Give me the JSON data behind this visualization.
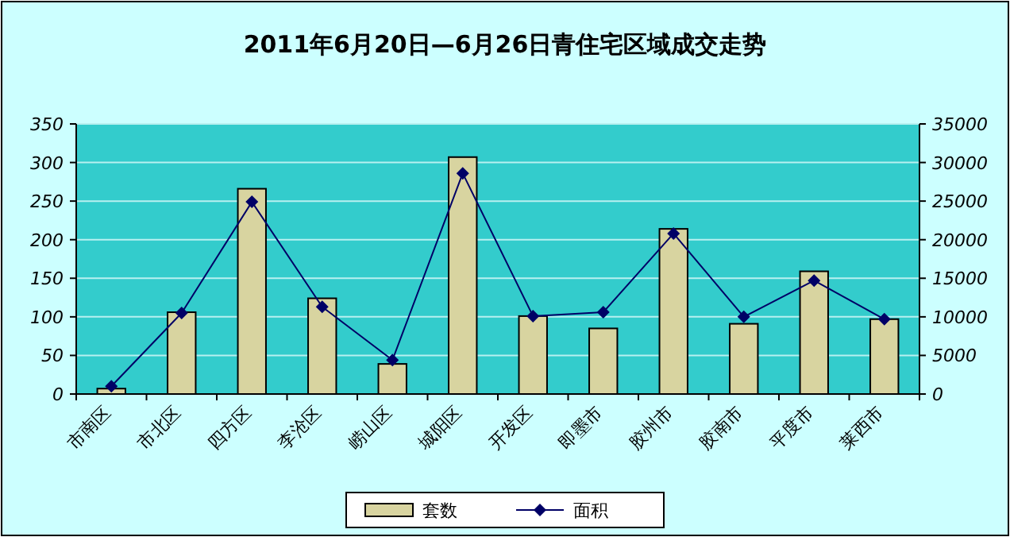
{
  "chart_data": {
    "type": "bar",
    "title": "2011年6月20日—6月26日青住宅区域成交走势",
    "categories": [
      "市南区",
      "市北区",
      "四方区",
      "李沧区",
      "崂山区",
      "城阳区",
      "开发区",
      "即墨市",
      "胶州市",
      "胶南市",
      "平度市",
      "莱西市"
    ],
    "series": [
      {
        "name": "套数",
        "color": "#d8d4a0",
        "values": [
          7,
          106,
          266,
          124,
          39,
          307,
          101,
          85,
          214,
          91,
          159,
          97
        ]
      },
      {
        "name": "面积",
        "type": "line",
        "axis": "y2",
        "color": "#000066",
        "marker": "diamond",
        "values": [
          1000,
          10500,
          24900,
          11300,
          4400,
          28600,
          10100,
          10600,
          20800,
          10000,
          14700,
          9700
        ]
      }
    ],
    "ylim": [
      0,
      350
    ],
    "yticks": [
      0,
      50,
      100,
      150,
      200,
      250,
      300,
      350
    ],
    "y2lim": [
      0,
      35000
    ],
    "y2ticks": [
      0,
      5000,
      10000,
      15000,
      20000,
      25000,
      30000,
      35000
    ],
    "grid": "y",
    "legend": "bottom"
  }
}
